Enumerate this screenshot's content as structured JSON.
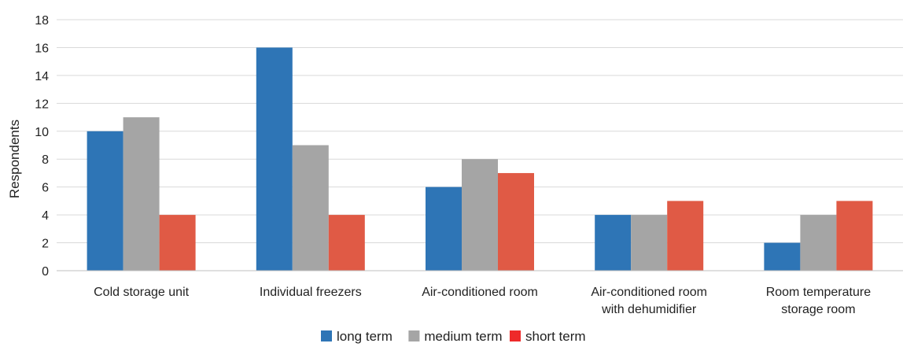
{
  "chart_data": {
    "type": "bar",
    "title": "",
    "xlabel": "",
    "ylabel": "Respondents",
    "ylim": [
      0,
      18
    ],
    "yticks": [
      0,
      2,
      4,
      6,
      8,
      10,
      12,
      14,
      16,
      18
    ],
    "grid": true,
    "legend_position": "bottom",
    "categories": [
      [
        "Cold storage unit"
      ],
      [
        "Individual freezers"
      ],
      [
        "Air-conditioned room"
      ],
      [
        "Air-conditioned room",
        "with dehumidifier"
      ],
      [
        "Room temperature",
        "storage room"
      ]
    ],
    "series": [
      {
        "name": "long term",
        "color": "#2e75b6",
        "values": [
          10,
          16,
          6,
          4,
          2
        ]
      },
      {
        "name": "medium term",
        "color": "#a5a5a5",
        "values": [
          11,
          9,
          8,
          4,
          4
        ]
      },
      {
        "name": "short term",
        "color": "#e05a45",
        "values": [
          4,
          4,
          7,
          5,
          5
        ]
      }
    ],
    "legend_colors": [
      "#2e75b6",
      "#a5a5a5",
      "#ee2a2a"
    ]
  }
}
